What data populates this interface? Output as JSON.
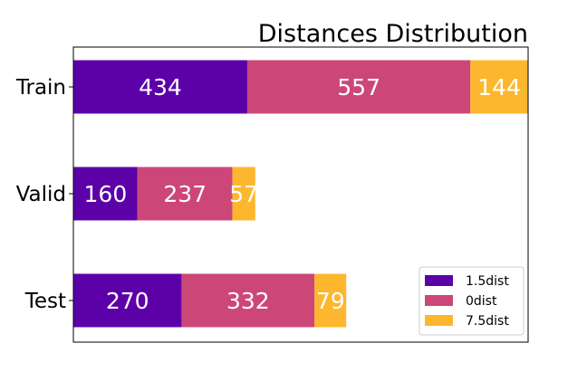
{
  "chart_data": {
    "type": "bar",
    "orientation": "horizontal",
    "stacked": true,
    "title": "Distances Distribution",
    "xlabel": "",
    "ylabel": "",
    "categories": [
      "Train",
      "Valid",
      "Test"
    ],
    "series": [
      {
        "name": "1.5dist",
        "values": [
          434,
          160,
          270
        ],
        "color": "#5c00a8"
      },
      {
        "name": "0dist",
        "values": [
          557,
          237,
          332
        ],
        "color": "#cc4778"
      },
      {
        "name": "7.5dist",
        "values": [
          144,
          57,
          79
        ],
        "color": "#fdb72e"
      }
    ],
    "xlim": [
      0,
      1135
    ],
    "grid": false,
    "legend_position": "lower right",
    "x_ticks_visible": false
  }
}
